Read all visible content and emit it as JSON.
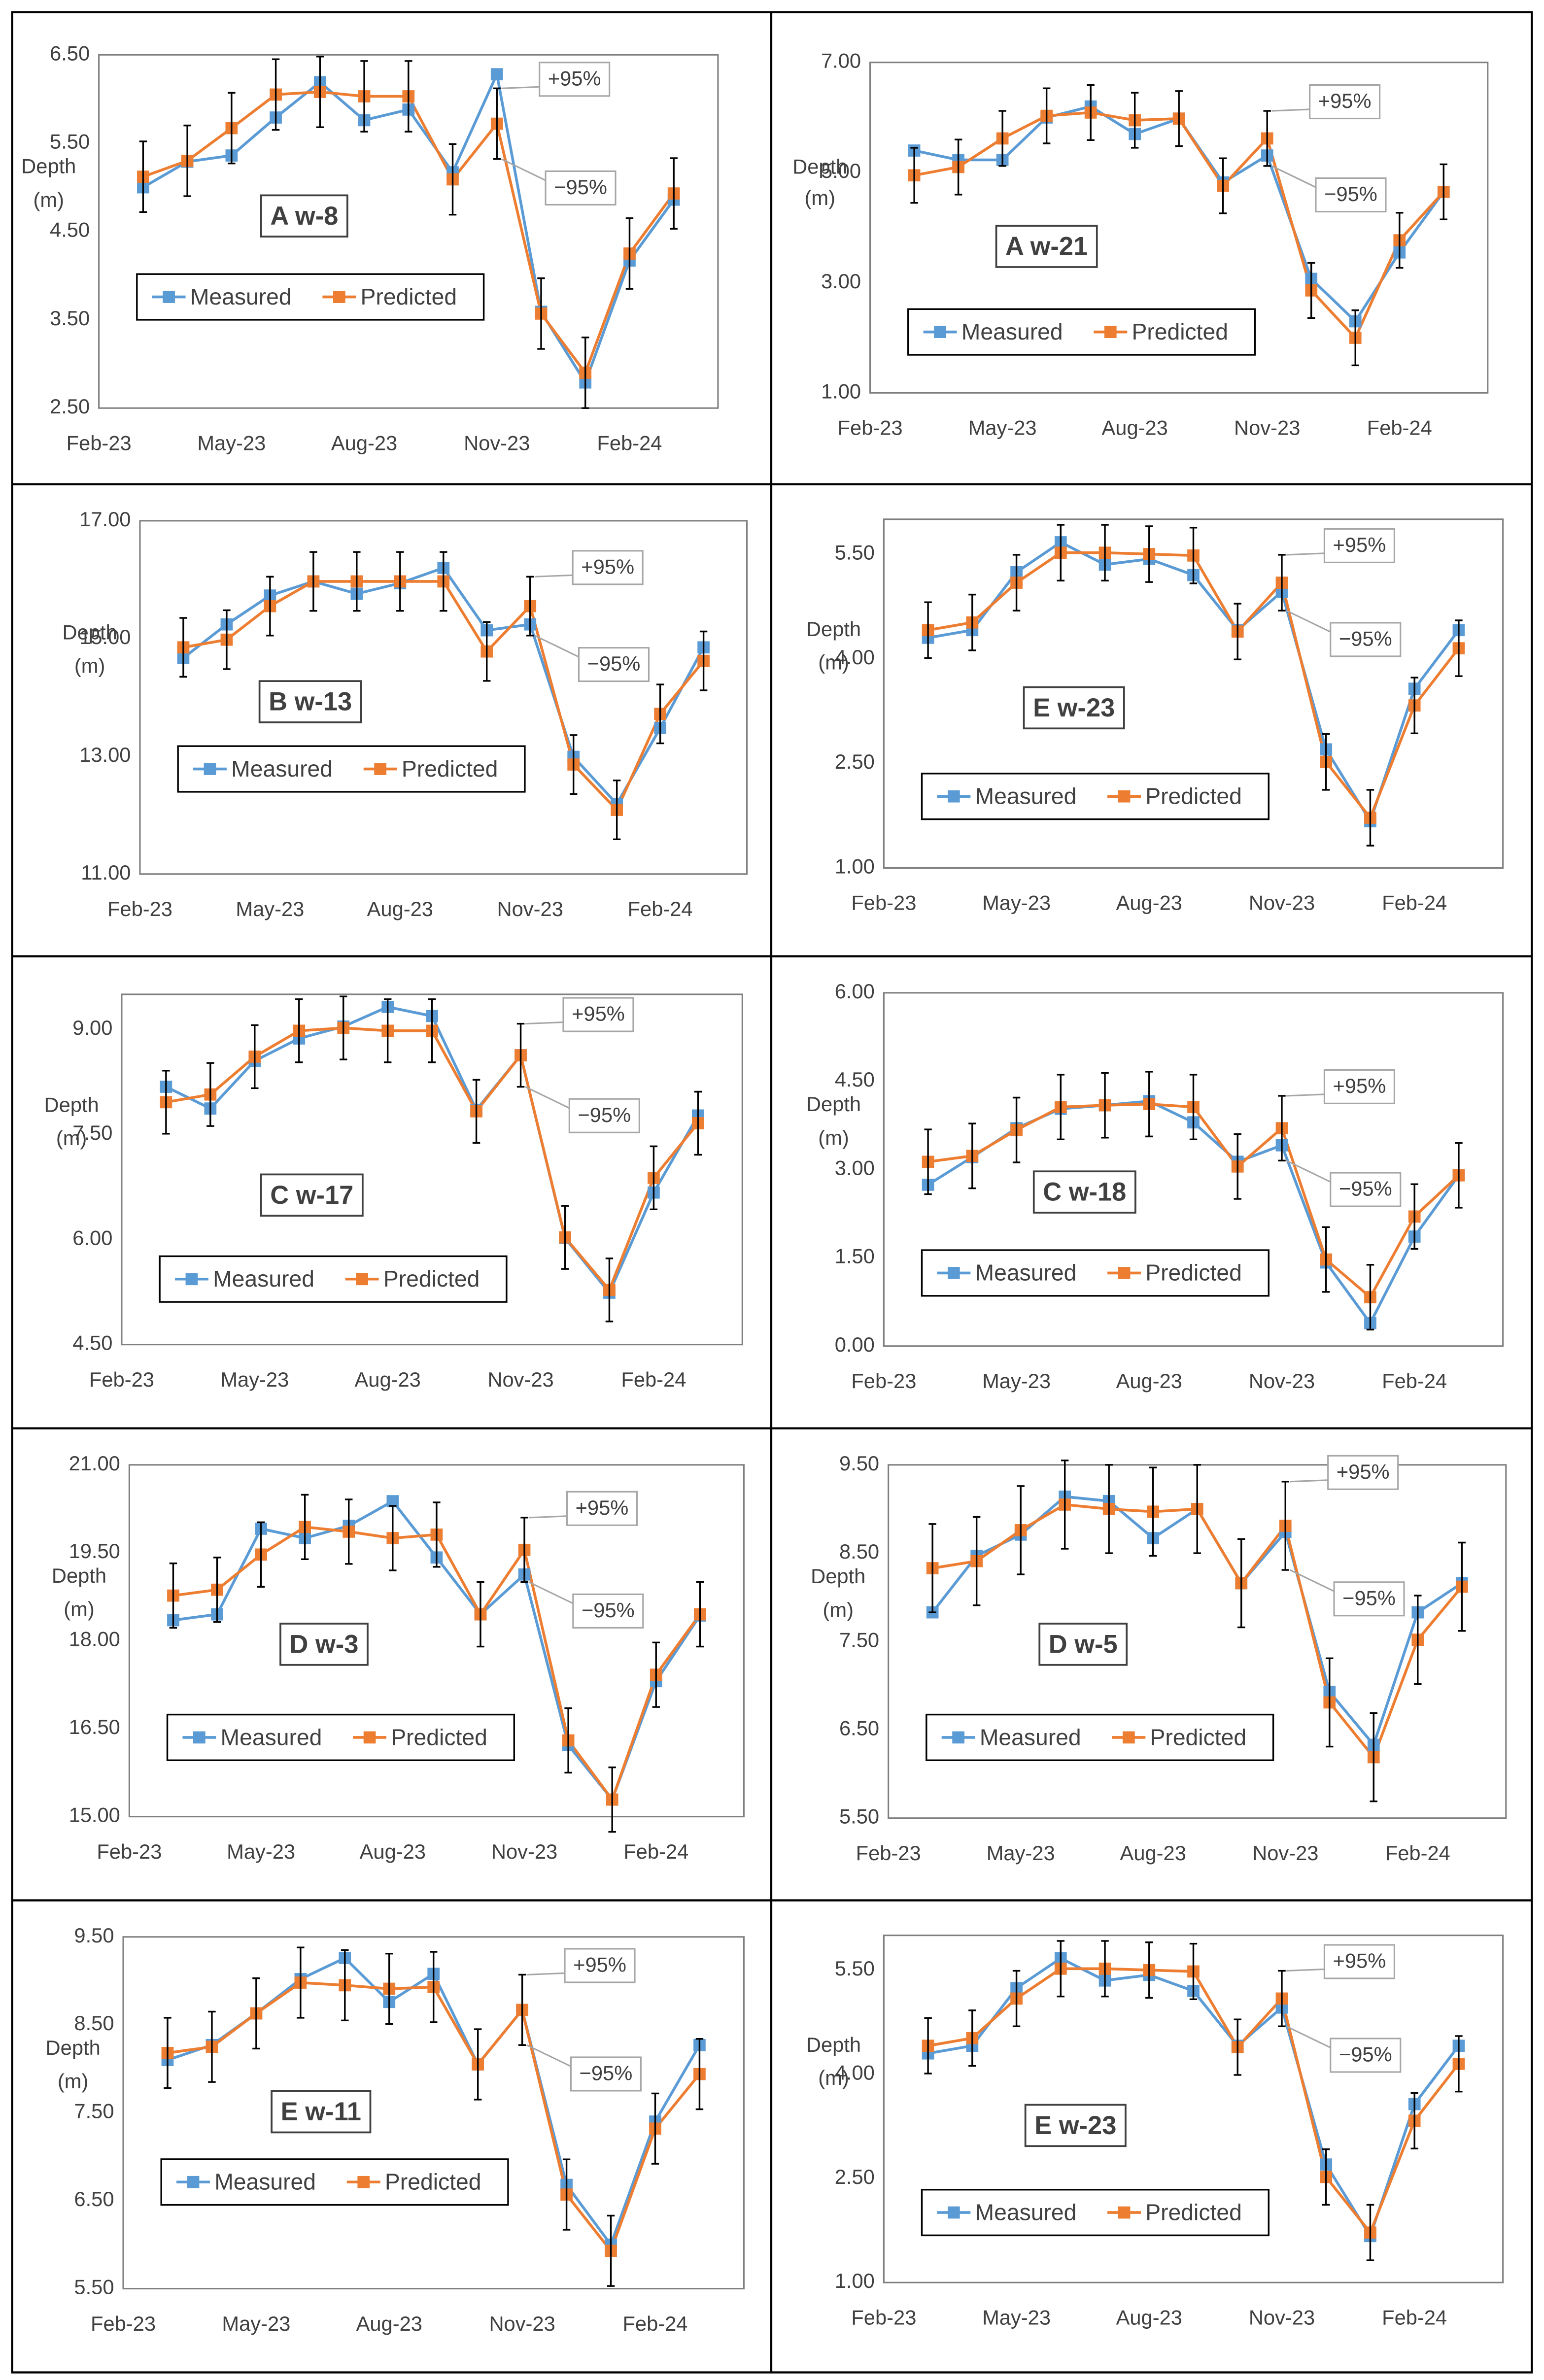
{
  "chart_data": [
    {
      "type": "line",
      "title": "A w-8",
      "y_label": [
        "Depth",
        "(m)"
      ],
      "annotations": [
        "+95%",
        "−95%"
      ],
      "categories": [
        "Feb-23",
        null,
        null,
        "May-23",
        null,
        null,
        "Aug-23",
        null,
        null,
        "Nov-23",
        null,
        null,
        "Feb-24",
        null
      ],
      "series": [
        {
          "name": "Measured",
          "color": "#5b9bd5",
          "values": [
            null,
            5.0,
            5.29,
            5.36,
            5.79,
            6.19,
            5.76,
            5.88,
            5.17,
            6.28,
            3.59,
            2.79,
            4.17,
            4.86
          ]
        },
        {
          "name": "Predicted",
          "color": "#ed7d31",
          "values": [
            null,
            5.12,
            5.3,
            5.67,
            6.05,
            6.08,
            6.03,
            6.03,
            5.09,
            5.72,
            3.57,
            2.9,
            4.25,
            4.93
          ]
        }
      ],
      "error": 0.4,
      "ylim": [
        2.5,
        6.5
      ],
      "yticks": [
        {
          "value": 2.5,
          "label": "2.50"
        },
        {
          "value": 3.5,
          "label": "3.50"
        },
        {
          "value": 4.5,
          "label": "4.50"
        },
        {
          "value": 5.5,
          "label": "5.50"
        },
        {
          "value": 6.5,
          "label": "6.50"
        }
      ],
      "grid": false
    },
    {
      "type": "line",
      "title": "A w-21",
      "y_label": [
        "Depth",
        "(m)"
      ],
      "annotations": [
        "+95%",
        "−95%"
      ],
      "categories": [
        "Feb-23",
        null,
        null,
        "May-23",
        null,
        null,
        "Aug-23",
        null,
        null,
        "Nov-23",
        null,
        null,
        "Feb-24",
        null
      ],
      "series": [
        {
          "name": "Measured",
          "color": "#5b9bd5",
          "values": [
            null,
            5.4,
            5.23,
            5.23,
            6.0,
            6.2,
            5.7,
            5.98,
            4.82,
            5.31,
            3.07,
            2.3,
            3.55,
            4.65
          ]
        },
        {
          "name": "Predicted",
          "color": "#ed7d31",
          "values": [
            null,
            4.95,
            5.1,
            5.62,
            6.03,
            6.09,
            5.95,
            5.98,
            4.76,
            5.62,
            2.86,
            2.0,
            3.77,
            4.65
          ]
        }
      ],
      "error": 0.5,
      "ylim": [
        1,
        7
      ],
      "yticks": [
        {
          "value": 1,
          "label": "1.00"
        },
        {
          "value": 3,
          "label": "3.00"
        },
        {
          "value": 5,
          "label": "5.00"
        },
        {
          "value": 7,
          "label": "7.00"
        }
      ],
      "grid": false
    },
    {
      "type": "line",
      "title": "B w-13",
      "y_label": [
        "Depth",
        "(m)"
      ],
      "annotations": [
        "+95%",
        "−95%"
      ],
      "categories": [
        "Feb-23",
        null,
        null,
        "May-23",
        null,
        null,
        "Aug-23",
        null,
        null,
        "Nov-23",
        null,
        null,
        "Feb-24",
        null
      ],
      "series": [
        {
          "name": "Measured",
          "color": "#5b9bd5",
          "values": [
            null,
            14.67,
            15.24,
            15.73,
            15.97,
            15.76,
            15.94,
            16.2,
            15.14,
            15.24,
            12.99,
            12.19,
            13.48,
            14.85
          ]
        },
        {
          "name": "Predicted",
          "color": "#ed7d31",
          "values": [
            null,
            14.85,
            14.98,
            15.55,
            15.97,
            15.97,
            15.97,
            15.97,
            14.78,
            15.55,
            12.86,
            12.09,
            13.72,
            14.62
          ]
        }
      ],
      "error": 0.5,
      "ylim": [
        11,
        17
      ],
      "yticks": [
        {
          "value": 11,
          "label": "11.00"
        },
        {
          "value": 13,
          "label": "13.00"
        },
        {
          "value": 15,
          "label": "15.00"
        },
        {
          "value": 17,
          "label": "17.00"
        }
      ],
      "grid": false
    },
    {
      "type": "line",
      "title": "E w-23",
      "y_label": [
        "Depth",
        "(m)"
      ],
      "annotations": [
        "+95%",
        "−95%"
      ],
      "categories": [
        "Feb-23",
        null,
        null,
        "May-23",
        null,
        null,
        "Aug-23",
        null,
        null,
        "Nov-23",
        null,
        null,
        "Feb-24",
        null
      ],
      "series": [
        {
          "name": "Measured",
          "color": "#5b9bd5",
          "values": [
            null,
            4.3,
            4.41,
            5.24,
            5.67,
            5.35,
            5.43,
            5.2,
            4.41,
            4.96,
            2.7,
            1.67,
            3.57,
            4.41
          ]
        },
        {
          "name": "Predicted",
          "color": "#ed7d31",
          "values": [
            null,
            4.41,
            4.52,
            5.09,
            5.52,
            5.52,
            5.5,
            5.48,
            4.39,
            5.09,
            2.52,
            1.72,
            3.33,
            4.15
          ]
        }
      ],
      "error": 0.4,
      "ylim": [
        1,
        6
      ],
      "yticks": [
        {
          "value": 1,
          "label": "1.00"
        },
        {
          "value": 2.5,
          "label": "2.50"
        },
        {
          "value": 4,
          "label": "4.00"
        },
        {
          "value": 5.5,
          "label": "5.50"
        }
      ],
      "grid": false
    },
    {
      "type": "line",
      "title": "C w-17",
      "y_label": [
        "Depth",
        "(m)"
      ],
      "annotations": [
        "+95%",
        "−95%"
      ],
      "categories": [
        "Feb-23",
        null,
        null,
        "May-23",
        null,
        null,
        "Aug-23",
        null,
        null,
        "Nov-23",
        null,
        null,
        "Feb-24",
        null
      ],
      "series": [
        {
          "name": "Measured",
          "color": "#5b9bd5",
          "values": [
            null,
            8.18,
            7.87,
            8.55,
            8.87,
            9.04,
            9.32,
            9.19,
            7.85,
            8.63,
            6.02,
            5.24,
            6.67,
            7.77
          ]
        },
        {
          "name": "Predicted",
          "color": "#ed7d31",
          "values": [
            null,
            7.96,
            8.07,
            8.61,
            8.98,
            9.02,
            8.98,
            8.98,
            7.83,
            8.63,
            6.03,
            5.28,
            6.88,
            7.66
          ]
        }
      ],
      "error": 0.45,
      "ylim": [
        4.5,
        9.5
      ],
      "yticks": [
        {
          "value": 4.5,
          "label": "4.50"
        },
        {
          "value": 6,
          "label": "6.00"
        },
        {
          "value": 7.5,
          "label": "7.50"
        },
        {
          "value": 9,
          "label": "9.00"
        }
      ],
      "grid": false
    },
    {
      "type": "line",
      "title": "C w-18",
      "y_label": [
        "Depth",
        "(m)"
      ],
      "annotations": [
        "+95%",
        "−95%"
      ],
      "categories": [
        "Feb-23",
        null,
        null,
        "May-23",
        null,
        null,
        "Aug-23",
        null,
        null,
        "Nov-23",
        null,
        null,
        "Feb-24",
        null
      ],
      "series": [
        {
          "name": "Measured",
          "color": "#5b9bd5",
          "values": [
            null,
            2.74,
            3.21,
            3.7,
            4.03,
            4.09,
            4.16,
            3.8,
            3.13,
            3.41,
            1.42,
            0.39,
            1.86,
            2.9
          ]
        },
        {
          "name": "Predicted",
          "color": "#ed7d31",
          "values": [
            null,
            3.13,
            3.23,
            3.67,
            4.06,
            4.09,
            4.11,
            4.06,
            3.05,
            3.7,
            1.47,
            0.83,
            2.2,
            2.9
          ]
        }
      ],
      "error": 0.55,
      "ylim": [
        0,
        6
      ],
      "yticks": [
        {
          "value": 0,
          "label": "0.00"
        },
        {
          "value": 1.5,
          "label": "1.50"
        },
        {
          "value": 3,
          "label": "3.00"
        },
        {
          "value": 4.5,
          "label": "4.50"
        },
        {
          "value": 6,
          "label": "6.00"
        }
      ],
      "grid": false
    },
    {
      "type": "line",
      "title": "D w-3",
      "y_label": [
        "Depth",
        "(m)"
      ],
      "annotations": [
        "+95%",
        "−95%"
      ],
      "categories": [
        "Feb-23",
        null,
        null,
        "May-23",
        null,
        null,
        "Aug-23",
        null,
        null,
        "Nov-23",
        null,
        null,
        "Feb-24",
        null
      ],
      "series": [
        {
          "name": "Measured",
          "color": "#5b9bd5",
          "values": [
            null,
            18.35,
            18.45,
            19.91,
            19.75,
            19.96,
            20.38,
            19.42,
            18.45,
            19.13,
            16.22,
            15.29,
            17.31,
            18.43
          ]
        },
        {
          "name": "Predicted",
          "color": "#ed7d31",
          "values": [
            null,
            18.77,
            18.87,
            19.47,
            19.94,
            19.86,
            19.75,
            19.81,
            18.45,
            19.55,
            16.3,
            15.29,
            17.42,
            18.45
          ]
        }
      ],
      "error": 0.55,
      "ylim": [
        15,
        21
      ],
      "yticks": [
        {
          "value": 15,
          "label": "15.00"
        },
        {
          "value": 16.5,
          "label": "16.50"
        },
        {
          "value": 18,
          "label": "18.00"
        },
        {
          "value": 19.5,
          "label": "19.50"
        },
        {
          "value": 21,
          "label": "21.00"
        }
      ],
      "grid": false
    },
    {
      "type": "line",
      "title": "D w-5",
      "y_label": [
        "Depth",
        "(m)"
      ],
      "annotations": [
        "+95%",
        "−95%"
      ],
      "categories": [
        "Feb-23",
        null,
        null,
        "May-23",
        null,
        null,
        "Aug-23",
        null,
        null,
        "Nov-23",
        null,
        null,
        "Feb-24",
        null
      ],
      "series": [
        {
          "name": "Measured",
          "color": "#5b9bd5",
          "values": [
            null,
            7.83,
            8.47,
            8.71,
            9.14,
            9.09,
            8.67,
            9.0,
            8.16,
            8.74,
            6.93,
            6.33,
            7.83,
            8.16
          ]
        },
        {
          "name": "Predicted",
          "color": "#ed7d31",
          "values": [
            null,
            8.33,
            8.41,
            8.76,
            9.05,
            9.0,
            8.97,
            9.0,
            8.16,
            8.81,
            6.81,
            6.19,
            7.52,
            8.12
          ]
        }
      ],
      "error": 0.5,
      "ylim": [
        5.5,
        9.5
      ],
      "yticks": [
        {
          "value": 5.5,
          "label": "5.50"
        },
        {
          "value": 6.5,
          "label": "6.50"
        },
        {
          "value": 7.5,
          "label": "7.50"
        },
        {
          "value": 8.5,
          "label": "8.50"
        },
        {
          "value": 9.5,
          "label": "9.50"
        }
      ],
      "grid": false
    },
    {
      "type": "line",
      "title": "E w-11",
      "y_label": [
        "Depth",
        "(m)"
      ],
      "annotations": [
        "+95%",
        "−95%"
      ],
      "categories": [
        "Feb-23",
        null,
        null,
        "May-23",
        null,
        null,
        "Aug-23",
        null,
        null,
        "Nov-23",
        null,
        null,
        "Feb-24",
        null
      ],
      "series": [
        {
          "name": "Measured",
          "color": "#5b9bd5",
          "values": [
            null,
            8.1,
            8.27,
            8.63,
            9.02,
            9.26,
            8.76,
            9.08,
            8.05,
            8.67,
            6.68,
            6.0,
            7.4,
            8.27
          ]
        },
        {
          "name": "Predicted",
          "color": "#ed7d31",
          "values": [
            null,
            8.18,
            8.25,
            8.63,
            8.98,
            8.95,
            8.91,
            8.93,
            8.05,
            8.67,
            6.57,
            5.93,
            7.32,
            7.94
          ]
        }
      ],
      "error": 0.4,
      "ylim": [
        5.5,
        9.5
      ],
      "yticks": [
        {
          "value": 5.5,
          "label": "5.50"
        },
        {
          "value": 6.5,
          "label": "6.50"
        },
        {
          "value": 7.5,
          "label": "7.50"
        },
        {
          "value": 8.5,
          "label": "8.50"
        },
        {
          "value": 9.5,
          "label": "9.50"
        }
      ],
      "grid": false
    },
    {
      "type": "line",
      "title": "E w-23",
      "y_label": [
        "Depth",
        "(m)"
      ],
      "annotations": [
        "+95%",
        "−95%"
      ],
      "categories": [
        "Feb-23",
        null,
        null,
        "May-23",
        null,
        null,
        "Aug-23",
        null,
        null,
        "Nov-23",
        null,
        null,
        "Feb-24",
        null
      ],
      "series": [
        {
          "name": "Measured",
          "color": "#5b9bd5",
          "values": [
            null,
            4.3,
            4.41,
            5.24,
            5.67,
            5.35,
            5.43,
            5.2,
            4.41,
            4.96,
            2.7,
            1.67,
            3.57,
            4.41
          ]
        },
        {
          "name": "Predicted",
          "color": "#ed7d31",
          "values": [
            null,
            4.41,
            4.52,
            5.09,
            5.52,
            5.52,
            5.5,
            5.48,
            4.39,
            5.09,
            2.52,
            1.72,
            3.33,
            4.15
          ]
        }
      ],
      "error": 0.4,
      "ylim": [
        1,
        6
      ],
      "yticks": [
        {
          "value": 1,
          "label": "1.00"
        },
        {
          "value": 2.5,
          "label": "2.50"
        },
        {
          "value": 4,
          "label": "4.00"
        },
        {
          "value": 5.5,
          "label": "5.50"
        }
      ],
      "grid": false
    }
  ]
}
